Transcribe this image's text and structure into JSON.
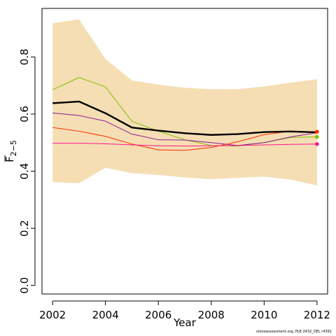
{
  "chart_data": {
    "type": "line",
    "title": "",
    "xlabel": "Year",
    "ylabel_main": "F",
    "ylabel_sub": "2−5",
    "xlim": [
      2001.6,
      2012.4
    ],
    "ylim": [
      -0.03,
      0.97
    ],
    "x_ticks": [
      2002,
      2004,
      2006,
      2008,
      2010,
      2012
    ],
    "y_ticks": [
      0.0,
      0.2,
      0.4,
      0.6,
      0.8
    ],
    "y_tick_labels": [
      "0.0",
      "0.2",
      "0.4",
      "0.6",
      "0.8"
    ],
    "x": [
      2002,
      2003,
      2004,
      2005,
      2006,
      2007,
      2008,
      2009,
      2010,
      2011,
      2012
    ],
    "band": {
      "color": "#f5deb3",
      "upper": [
        0.918,
        0.932,
        0.793,
        0.718,
        0.703,
        0.692,
        0.687,
        0.687,
        0.697,
        0.71,
        0.722
      ],
      "lower": [
        0.362,
        0.358,
        0.412,
        0.393,
        0.387,
        0.378,
        0.372,
        0.377,
        0.381,
        0.371,
        0.35
      ]
    },
    "series": [
      {
        "color": "#000000",
        "width": 2.4,
        "end_point": false,
        "values": [
          0.638,
          0.644,
          0.603,
          0.553,
          0.542,
          0.533,
          0.527,
          0.53,
          0.537,
          0.539,
          0.536
        ]
      },
      {
        "color": "#7fbf00",
        "width": 1,
        "end_point": true,
        "values": [
          0.685,
          0.728,
          0.695,
          0.575,
          0.54,
          0.51,
          0.49,
          0.488,
          0.5,
          0.518,
          0.52
        ]
      },
      {
        "color": "#8b1a9b",
        "width": 1,
        "end_point": false,
        "values": [
          0.604,
          0.595,
          0.575,
          0.53,
          0.51,
          0.509,
          0.5,
          0.49,
          0.5,
          0.52,
          0.535
        ]
      },
      {
        "color": "#ff2a00",
        "width": 1,
        "end_point": true,
        "values": [
          0.553,
          0.54,
          0.522,
          0.495,
          0.475,
          0.473,
          0.483,
          0.503,
          0.528,
          0.54,
          0.538
        ]
      },
      {
        "color": "#ff1493",
        "width": 1,
        "end_point": true,
        "values": [
          0.498,
          0.498,
          0.496,
          0.492,
          0.489,
          0.488,
          0.489,
          0.49,
          0.492,
          0.494,
          0.495
        ]
      }
    ],
    "grid": false,
    "legend": "none"
  },
  "footer": {
    "source": "stockassessment.org, PLE-2432_DEL r4391"
  }
}
